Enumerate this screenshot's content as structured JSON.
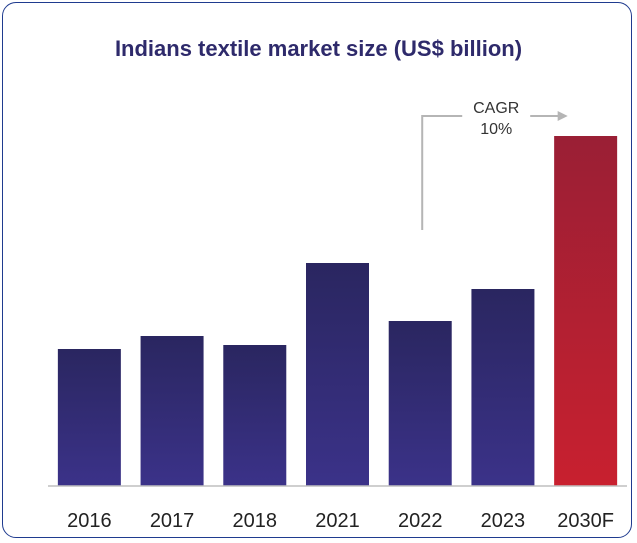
{
  "chart_data": {
    "type": "bar",
    "title": "Indians textile market size (US$ billion)",
    "categories": [
      "2016",
      "2017",
      "2018",
      "2021",
      "2022",
      "2023",
      "2030F"
    ],
    "values": [
      137,
      150,
      141,
      223,
      165,
      197,
      350
    ],
    "ylim": [
      0,
      360
    ],
    "grid": false,
    "highlight_category": "2030F",
    "colors": {
      "bar_top": "#2a2660",
      "bar_bottom": "#3b3289",
      "highlight_top": "#9a1f35",
      "highlight_bottom": "#c8202f",
      "border": "#1f3b8f",
      "arrow": "#b5b5b5"
    },
    "annotation": {
      "line1": "CAGR",
      "line2": "10%"
    }
  }
}
